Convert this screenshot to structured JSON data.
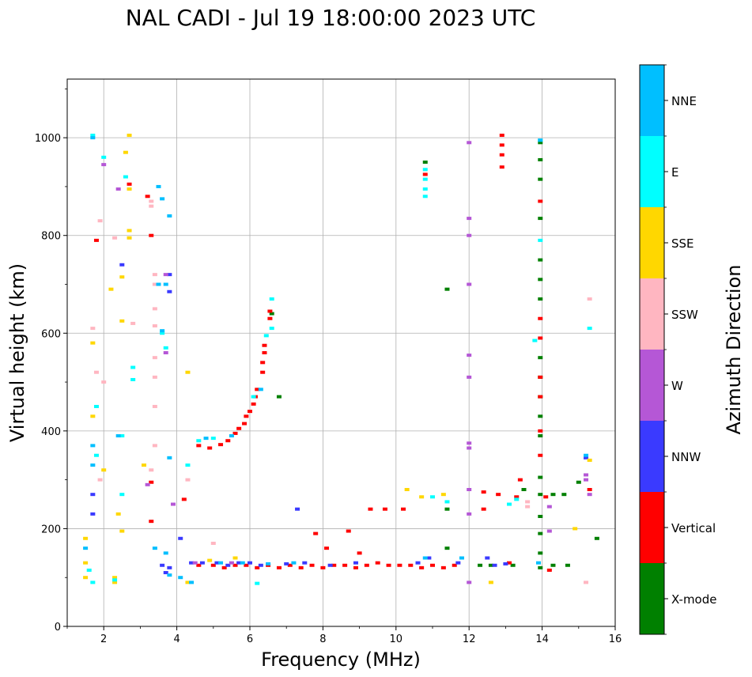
{
  "chart_data": {
    "type": "scatter",
    "title": "NAL CADI - Jul 19 18:00:00 2023 UTC",
    "xlabel": "Frequency (MHz)",
    "ylabel": "Virtual height (km)",
    "xlim": [
      1,
      16
    ],
    "ylim": [
      0,
      1120
    ],
    "xticks": [
      2,
      4,
      6,
      8,
      10,
      12,
      14,
      16
    ],
    "yticks": [
      0,
      200,
      400,
      600,
      800,
      1000
    ],
    "grid": true,
    "colorbar": {
      "label": "Azimuth Direction",
      "categories": [
        {
          "name": "X-mode",
          "color": "#008000"
        },
        {
          "name": "Vertical",
          "color": "#ff0000"
        },
        {
          "name": "NNW",
          "color": "#3a3aff"
        },
        {
          "name": "W",
          "color": "#b557d6"
        },
        {
          "name": "SSW",
          "color": "#ffb6c1"
        },
        {
          "name": "SSE",
          "color": "#ffd700"
        },
        {
          "name": "E",
          "color": "#00ffff"
        },
        {
          "name": "NNE",
          "color": "#00bfff"
        }
      ]
    },
    "series": [
      {
        "name": "X-mode",
        "points": [
          [
            10.8,
            950
          ],
          [
            11.4,
            690
          ],
          [
            11.4,
            240
          ],
          [
            11.4,
            160
          ],
          [
            12.3,
            125
          ],
          [
            12.6,
            125
          ],
          [
            13.2,
            125
          ],
          [
            13.5,
            280
          ],
          [
            13.95,
            990
          ],
          [
            13.95,
            955
          ],
          [
            13.95,
            915
          ],
          [
            13.95,
            835
          ],
          [
            13.95,
            750
          ],
          [
            13.95,
            710
          ],
          [
            13.95,
            670
          ],
          [
            13.95,
            550
          ],
          [
            13.95,
            510
          ],
          [
            13.95,
            470
          ],
          [
            13.95,
            430
          ],
          [
            13.95,
            390
          ],
          [
            13.95,
            305
          ],
          [
            13.95,
            270
          ],
          [
            13.95,
            225
          ],
          [
            13.95,
            190
          ],
          [
            13.95,
            150
          ],
          [
            13.95,
            120
          ],
          [
            14.3,
            125
          ],
          [
            14.7,
            125
          ],
          [
            14.3,
            270
          ],
          [
            14.6,
            270
          ],
          [
            15.0,
            295
          ],
          [
            15.5,
            180
          ],
          [
            6.8,
            470
          ],
          [
            6.6,
            640
          ]
        ]
      },
      {
        "name": "Vertical",
        "points": [
          [
            1.8,
            790
          ],
          [
            2.7,
            905
          ],
          [
            3.2,
            880
          ],
          [
            3.3,
            800
          ],
          [
            3.3,
            295
          ],
          [
            3.3,
            215
          ],
          [
            4.2,
            260
          ],
          [
            4.6,
            125
          ],
          [
            5.0,
            125
          ],
          [
            5.3,
            120
          ],
          [
            5.6,
            125
          ],
          [
            5.9,
            125
          ],
          [
            6.2,
            120
          ],
          [
            6.5,
            125
          ],
          [
            6.8,
            120
          ],
          [
            7.1,
            125
          ],
          [
            7.4,
            120
          ],
          [
            7.7,
            125
          ],
          [
            8.0,
            120
          ],
          [
            8.3,
            125
          ],
          [
            8.6,
            125
          ],
          [
            8.9,
            120
          ],
          [
            9.2,
            125
          ],
          [
            9.5,
            130
          ],
          [
            9.8,
            125
          ],
          [
            10.1,
            125
          ],
          [
            10.4,
            125
          ],
          [
            10.7,
            120
          ],
          [
            11.0,
            125
          ],
          [
            11.3,
            120
          ],
          [
            11.6,
            125
          ],
          [
            7.8,
            190
          ],
          [
            8.1,
            160
          ],
          [
            8.7,
            195
          ],
          [
            9.0,
            150
          ],
          [
            9.3,
            240
          ],
          [
            9.7,
            240
          ],
          [
            10.2,
            240
          ],
          [
            10.8,
            925
          ],
          [
            4.6,
            370
          ],
          [
            4.9,
            365
          ],
          [
            5.2,
            372
          ],
          [
            5.4,
            380
          ],
          [
            5.6,
            395
          ],
          [
            5.7,
            405
          ],
          [
            5.85,
            415
          ],
          [
            5.9,
            430
          ],
          [
            6.0,
            440
          ],
          [
            6.1,
            455
          ],
          [
            6.15,
            470
          ],
          [
            6.2,
            485
          ],
          [
            6.35,
            520
          ],
          [
            6.35,
            540
          ],
          [
            6.4,
            560
          ],
          [
            6.4,
            575
          ],
          [
            6.55,
            630
          ],
          [
            6.55,
            645
          ],
          [
            12.4,
            240
          ],
          [
            12.4,
            275
          ],
          [
            12.8,
            270
          ],
          [
            12.9,
            1005
          ],
          [
            12.9,
            985
          ],
          [
            12.9,
            965
          ],
          [
            12.9,
            940
          ],
          [
            13.1,
            130
          ],
          [
            13.3,
            265
          ],
          [
            13.4,
            300
          ],
          [
            13.95,
            870
          ],
          [
            13.95,
            630
          ],
          [
            13.95,
            590
          ],
          [
            13.95,
            510
          ],
          [
            13.95,
            470
          ],
          [
            13.95,
            400
          ],
          [
            13.95,
            350
          ],
          [
            14.1,
            265
          ],
          [
            14.2,
            115
          ],
          [
            15.3,
            280
          ]
        ]
      },
      {
        "name": "NNW",
        "points": [
          [
            1.7,
            270
          ],
          [
            1.7,
            230
          ],
          [
            2.5,
            740
          ],
          [
            3.6,
            125
          ],
          [
            3.7,
            110
          ],
          [
            3.8,
            120
          ],
          [
            4.1,
            180
          ],
          [
            4.4,
            130
          ],
          [
            4.7,
            130
          ],
          [
            5.1,
            130
          ],
          [
            5.4,
            125
          ],
          [
            5.7,
            130
          ],
          [
            6.0,
            130
          ],
          [
            6.3,
            125
          ],
          [
            7.0,
            128
          ],
          [
            7.3,
            240
          ],
          [
            7.5,
            130
          ],
          [
            8.2,
            125
          ],
          [
            8.9,
            130
          ],
          [
            10.6,
            130
          ],
          [
            10.9,
            140
          ],
          [
            11.7,
            130
          ],
          [
            12.5,
            140
          ],
          [
            12.7,
            125
          ],
          [
            13.0,
            128
          ],
          [
            15.2,
            345
          ],
          [
            3.8,
            720
          ],
          [
            3.8,
            685
          ]
        ]
      },
      {
        "name": "W",
        "points": [
          [
            2.0,
            945
          ],
          [
            2.4,
            895
          ],
          [
            3.7,
            720
          ],
          [
            3.7,
            560
          ],
          [
            3.2,
            290
          ],
          [
            3.9,
            250
          ],
          [
            12.0,
            990
          ],
          [
            12.0,
            835
          ],
          [
            12.0,
            800
          ],
          [
            12.0,
            700
          ],
          [
            12.0,
            555
          ],
          [
            12.0,
            510
          ],
          [
            12.0,
            375
          ],
          [
            12.0,
            365
          ],
          [
            12.0,
            280
          ],
          [
            12.0,
            230
          ],
          [
            12.0,
            90
          ],
          [
            14.2,
            245
          ],
          [
            14.2,
            195
          ],
          [
            15.2,
            310
          ],
          [
            15.2,
            300
          ],
          [
            15.3,
            270
          ],
          [
            4.5,
            130
          ],
          [
            5.5,
            130
          ]
        ]
      },
      {
        "name": "SSW",
        "points": [
          [
            1.9,
            830
          ],
          [
            2.3,
            795
          ],
          [
            3.3,
            870
          ],
          [
            3.3,
            860
          ],
          [
            3.4,
            720
          ],
          [
            3.4,
            700
          ],
          [
            3.4,
            650
          ],
          [
            3.4,
            615
          ],
          [
            3.4,
            550
          ],
          [
            3.4,
            510
          ],
          [
            3.4,
            450
          ],
          [
            3.4,
            370
          ],
          [
            3.3,
            320
          ],
          [
            1.7,
            610
          ],
          [
            1.8,
            520
          ],
          [
            2.0,
            500
          ],
          [
            1.9,
            300
          ],
          [
            4.3,
            300
          ],
          [
            5.0,
            170
          ],
          [
            13.6,
            255
          ],
          [
            13.6,
            245
          ],
          [
            15.3,
            670
          ],
          [
            15.2,
            90
          ],
          [
            2.8,
            620
          ]
        ]
      },
      {
        "name": "SSE",
        "points": [
          [
            2.7,
            1005
          ],
          [
            2.6,
            970
          ],
          [
            2.7,
            895
          ],
          [
            2.7,
            810
          ],
          [
            2.7,
            795
          ],
          [
            2.5,
            715
          ],
          [
            2.5,
            625
          ],
          [
            2.2,
            690
          ],
          [
            1.7,
            580
          ],
          [
            1.7,
            430
          ],
          [
            2.0,
            320
          ],
          [
            2.4,
            230
          ],
          [
            2.5,
            195
          ],
          [
            1.5,
            180
          ],
          [
            1.5,
            130
          ],
          [
            1.5,
            100
          ],
          [
            2.3,
            100
          ],
          [
            2.3,
            90
          ],
          [
            4.3,
            520
          ],
          [
            4.3,
            90
          ],
          [
            4.9,
            135
          ],
          [
            5.6,
            140
          ],
          [
            10.3,
            280
          ],
          [
            10.7,
            265
          ],
          [
            11.3,
            270
          ],
          [
            12.6,
            90
          ],
          [
            14.9,
            200
          ],
          [
            15.3,
            340
          ],
          [
            3.1,
            330
          ]
        ]
      },
      {
        "name": "E",
        "points": [
          [
            1.7,
            1005
          ],
          [
            2.0,
            960
          ],
          [
            2.6,
            920
          ],
          [
            2.8,
            530
          ],
          [
            2.8,
            505
          ],
          [
            1.8,
            450
          ],
          [
            1.8,
            350
          ],
          [
            1.6,
            115
          ],
          [
            1.7,
            90
          ],
          [
            2.3,
            95
          ],
          [
            2.5,
            390
          ],
          [
            2.5,
            270
          ],
          [
            3.6,
            600
          ],
          [
            3.7,
            570
          ],
          [
            4.3,
            330
          ],
          [
            6.6,
            670
          ],
          [
            6.6,
            610
          ],
          [
            6.45,
            595
          ],
          [
            6.1,
            470
          ],
          [
            4.6,
            380
          ],
          [
            5.0,
            385
          ],
          [
            6.2,
            88
          ],
          [
            10.8,
            935
          ],
          [
            10.8,
            915
          ],
          [
            10.8,
            895
          ],
          [
            10.8,
            880
          ],
          [
            11.0,
            265
          ],
          [
            11.4,
            255
          ],
          [
            13.95,
            995
          ],
          [
            13.95,
            790
          ],
          [
            13.8,
            585
          ],
          [
            15.3,
            610
          ],
          [
            13.3,
            260
          ],
          [
            13.1,
            250
          ]
        ]
      },
      {
        "name": "NNE",
        "points": [
          [
            1.7,
            1000
          ],
          [
            3.5,
            900
          ],
          [
            3.6,
            875
          ],
          [
            3.8,
            840
          ],
          [
            3.5,
            700
          ],
          [
            3.7,
            700
          ],
          [
            3.6,
            605
          ],
          [
            1.7,
            370
          ],
          [
            1.7,
            330
          ],
          [
            2.4,
            390
          ],
          [
            3.8,
            345
          ],
          [
            1.5,
            160
          ],
          [
            3.4,
            160
          ],
          [
            3.7,
            150
          ],
          [
            3.8,
            105
          ],
          [
            4.1,
            100
          ],
          [
            4.4,
            90
          ],
          [
            4.8,
            385
          ],
          [
            5.2,
            130
          ],
          [
            5.8,
            130
          ],
          [
            6.5,
            128
          ],
          [
            7.2,
            130
          ],
          [
            10.8,
            140
          ],
          [
            11.8,
            140
          ],
          [
            13.95,
            995
          ],
          [
            13.9,
            130
          ],
          [
            15.2,
            350
          ],
          [
            5.5,
            390
          ],
          [
            6.3,
            485
          ]
        ]
      }
    ]
  }
}
